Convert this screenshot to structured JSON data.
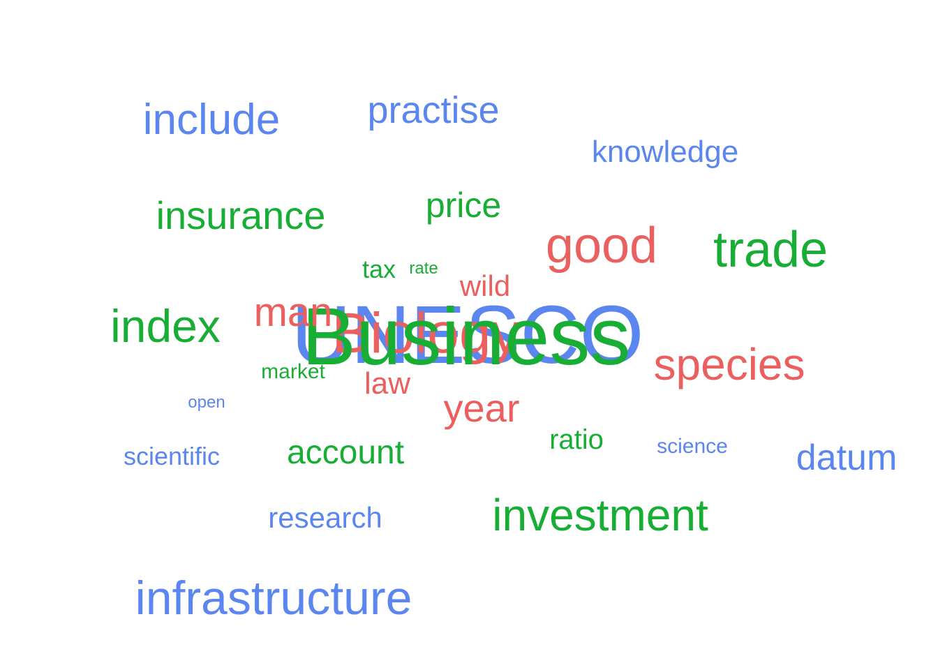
{
  "colors": {
    "blue": "#5b86f0",
    "red": "#ec5f5f",
    "green": "#18ad34"
  },
  "words": [
    {
      "text": "UNESCO",
      "color": "blue"
    },
    {
      "text": "Biology",
      "color": "red"
    },
    {
      "text": "Business",
      "color": "green"
    },
    {
      "text": "include",
      "color": "blue"
    },
    {
      "text": "practise",
      "color": "blue"
    },
    {
      "text": "knowledge",
      "color": "blue"
    },
    {
      "text": "insurance",
      "color": "green"
    },
    {
      "text": "price",
      "color": "green"
    },
    {
      "text": "good",
      "color": "red"
    },
    {
      "text": "trade",
      "color": "green"
    },
    {
      "text": "tax",
      "color": "green"
    },
    {
      "text": "rate",
      "color": "green"
    },
    {
      "text": "wild",
      "color": "red"
    },
    {
      "text": "index",
      "color": "green"
    },
    {
      "text": "man",
      "color": "red"
    },
    {
      "text": "species",
      "color": "red"
    },
    {
      "text": "market",
      "color": "green"
    },
    {
      "text": "law",
      "color": "red"
    },
    {
      "text": "open",
      "color": "blue"
    },
    {
      "text": "year",
      "color": "red"
    },
    {
      "text": "ratio",
      "color": "green"
    },
    {
      "text": "science",
      "color": "blue"
    },
    {
      "text": "scientific",
      "color": "blue"
    },
    {
      "text": "account",
      "color": "green"
    },
    {
      "text": "datum",
      "color": "blue"
    },
    {
      "text": "research",
      "color": "blue"
    },
    {
      "text": "investment",
      "color": "green"
    },
    {
      "text": "infrastructure",
      "color": "blue"
    }
  ]
}
